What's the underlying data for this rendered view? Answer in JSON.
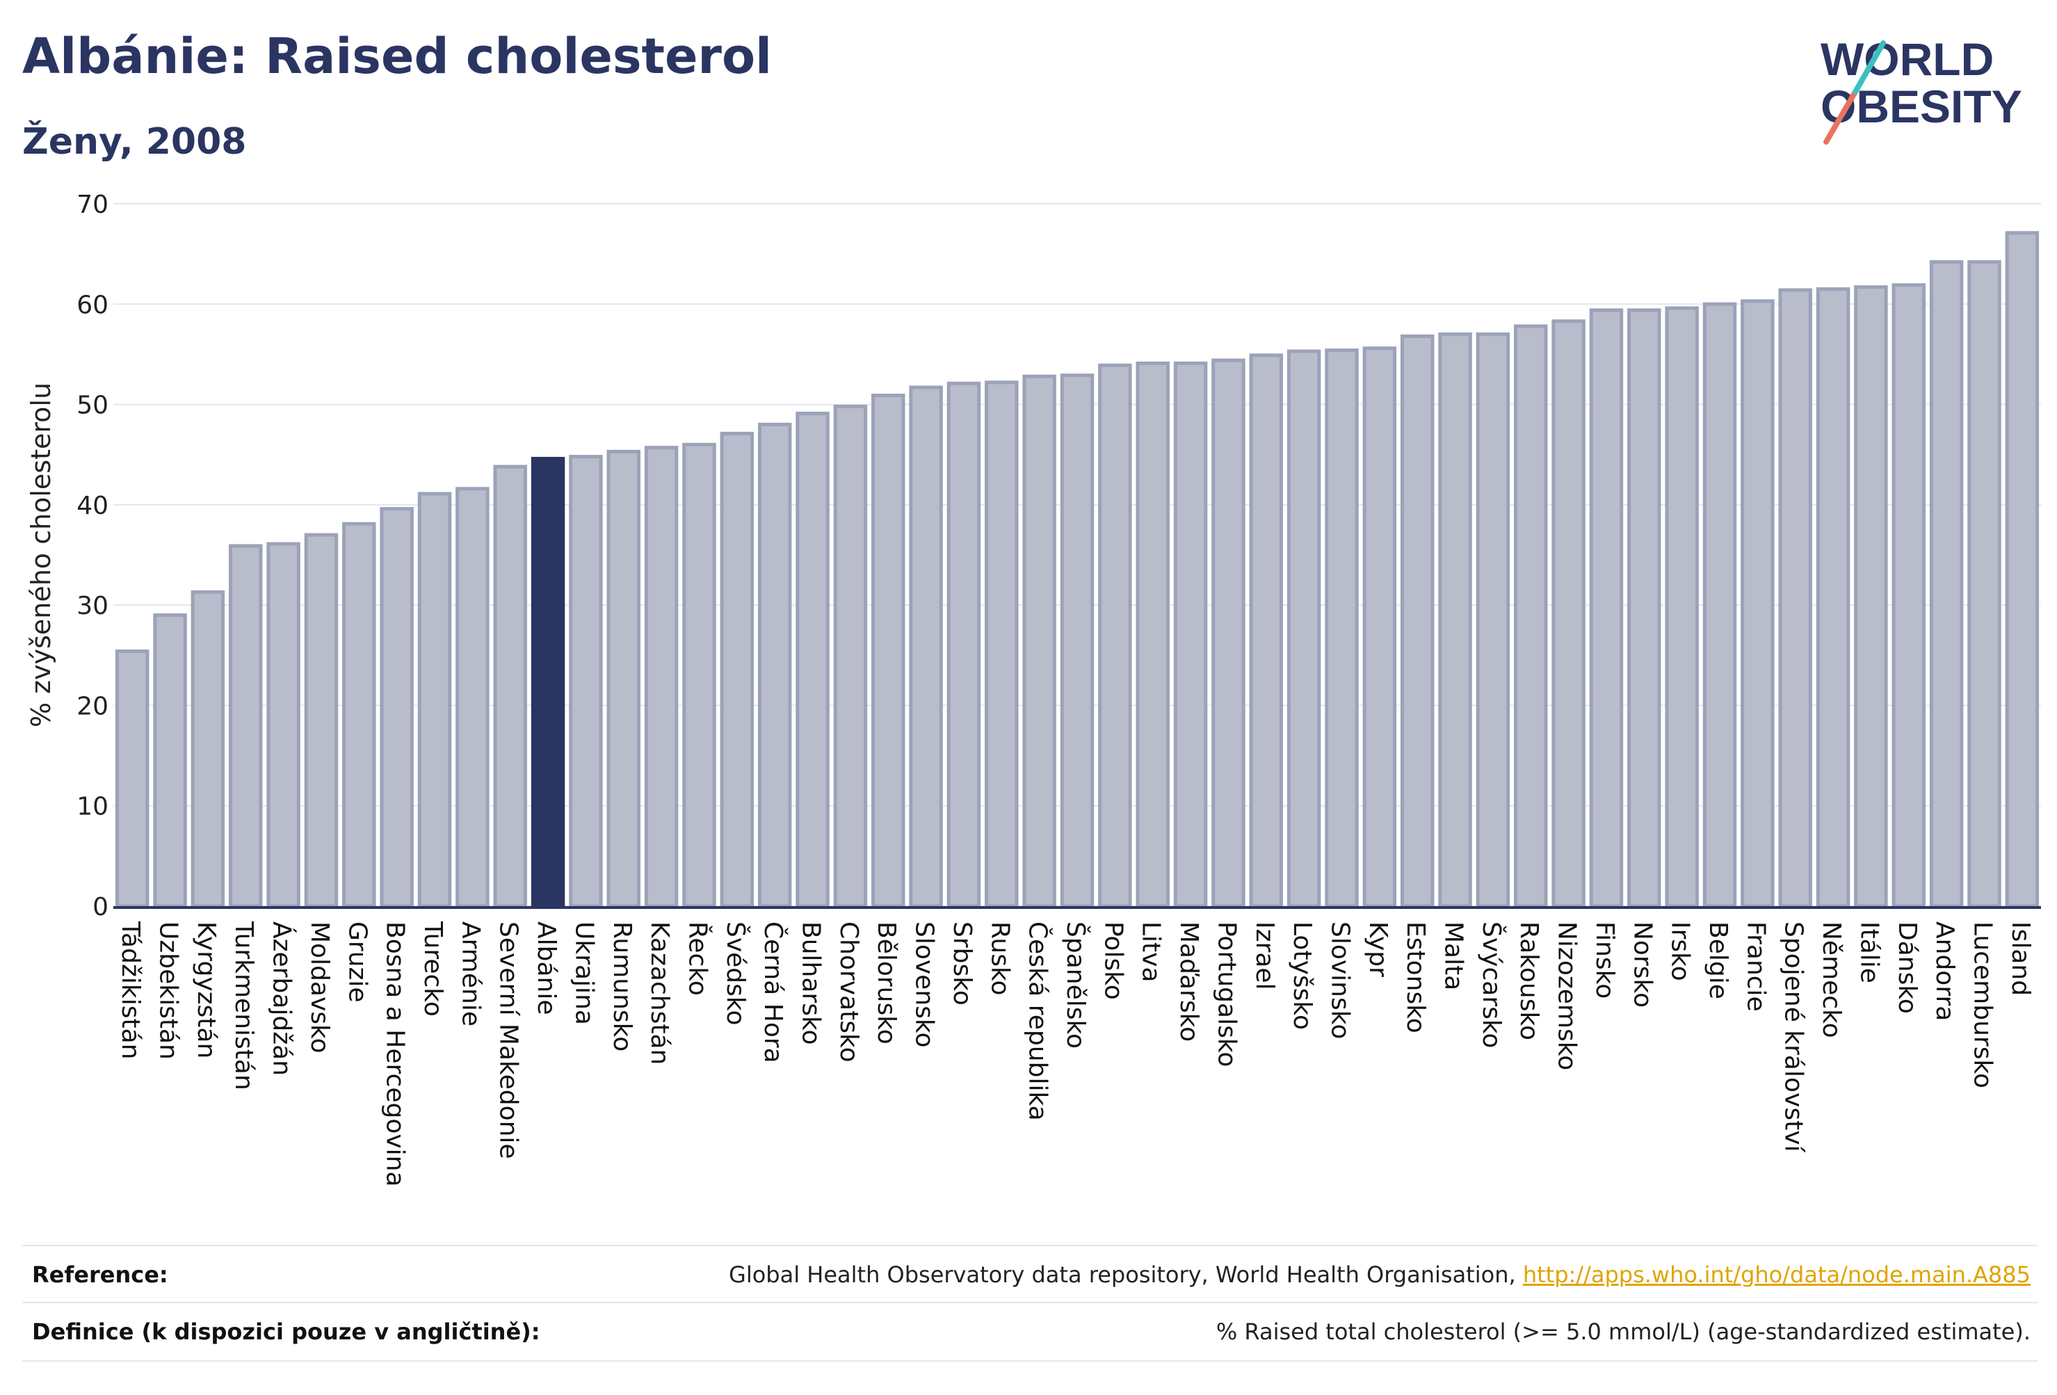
{
  "header": {
    "title": "Albánie: Raised cholesterol",
    "subtitle": "Ženy, 2008"
  },
  "logo": {
    "line1": "WORLD",
    "line2": "OBESITY"
  },
  "colors": {
    "bar": "#b9bccb",
    "bar_stroke": "#9ca2b8",
    "highlight": "#2b3562",
    "brand": "#2b3562",
    "grid": "#e4e6ea",
    "link": "#e0a400"
  },
  "chart_data": {
    "type": "bar",
    "ylabel": "% zvýšeného cholesterolu",
    "xlabel": "",
    "ylim": [
      0,
      70
    ],
    "yticks": [
      0,
      10,
      20,
      30,
      40,
      50,
      60,
      70
    ],
    "grid": true,
    "highlight_category": "Albánie",
    "categories": [
      "Tádžikistán",
      "Uzbekistán",
      "Kyrgyzstán",
      "Turkmenistán",
      "Ázerbajdžán",
      "Moldavsko",
      "Gruzie",
      "Bosna a Hercegovina",
      "Turecko",
      "Arménie",
      "Severní Makedonie",
      "Albánie",
      "Ukrajina",
      "Rumunsko",
      "Kazachstán",
      "Řecko",
      "Švédsko",
      "Černá Hora",
      "Bulharsko",
      "Chorvatsko",
      "Bělorusko",
      "Slovensko",
      "Srbsko",
      "Rusko",
      "Česká republika",
      "Španělsko",
      "Polsko",
      "Litva",
      "Maďarsko",
      "Portugalsko",
      "Izrael",
      "Lotyšsko",
      "Slovinsko",
      "Kypr",
      "Estonsko",
      "Malta",
      "Švýcarsko",
      "Rakousko",
      "Nizozemsko",
      "Finsko",
      "Norsko",
      "Irsko",
      "Belgie",
      "Francie",
      "Spojené království",
      "Německo",
      "Itálie",
      "Dánsko",
      "Andorra",
      "Lucembursko",
      "Island"
    ],
    "values": [
      25.4,
      29.0,
      31.3,
      35.9,
      36.1,
      37.0,
      38.1,
      39.6,
      41.1,
      41.6,
      43.8,
      44.6,
      44.8,
      45.3,
      45.7,
      46.0,
      47.1,
      48.0,
      49.1,
      49.8,
      50.9,
      51.7,
      52.1,
      52.2,
      52.8,
      52.9,
      53.9,
      54.1,
      54.1,
      54.4,
      54.9,
      55.3,
      55.4,
      55.6,
      56.8,
      57.0,
      57.0,
      57.8,
      58.3,
      59.4,
      59.4,
      59.6,
      60.0,
      60.3,
      61.4,
      61.5,
      61.7,
      61.9,
      64.2,
      64.2,
      67.1
    ]
  },
  "footer": {
    "reference_label": "Reference:",
    "reference_text": "Global Health Observatory data repository, World Health Organisation, ",
    "reference_link": "http://apps.who.int/gho/data/node.main.A885",
    "definition_label": "Definice (k dispozici pouze v angličtině):",
    "definition_text": "% Raised total cholesterol (>= 5.0 mmol/L) (age-standardized estimate)."
  }
}
